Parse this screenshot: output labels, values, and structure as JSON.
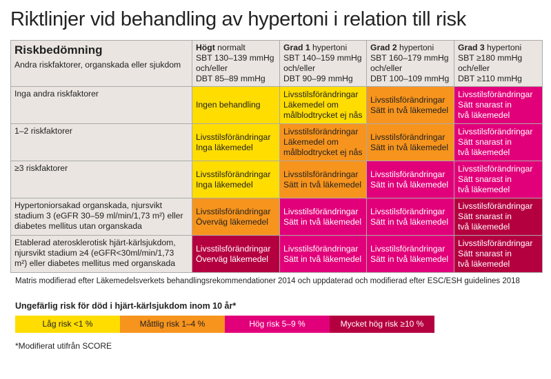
{
  "title": "Riktlinjer vid behandling av hypertoni i relation till risk",
  "header": {
    "title": "Riskbedömning",
    "subtitle": "Andra riskfaktorer, organskada eller sjukdom",
    "columns": [
      {
        "bold": "Högt",
        "rest": " normalt",
        "lines": [
          "SBT 130–139 mmHg",
          "och/eller",
          "DBT 85–89 mmHg"
        ]
      },
      {
        "bold": "Grad 1",
        "rest": " hypertoni",
        "lines": [
          "SBT 140–159 mmHg",
          "och/eller",
          "DBT 90–99 mmHg"
        ]
      },
      {
        "bold": "Grad 2",
        "rest": " hypertoni",
        "lines": [
          "SBT 160–179 mmHg",
          "och/eller",
          "DBT 100–109 mmHg"
        ]
      },
      {
        "bold": "Grad 3",
        "rest": " hypertoni",
        "lines": [
          "SBT ≥180 mmHg",
          "och/eller",
          "DBT ≥110 mmHg"
        ]
      }
    ]
  },
  "colors": {
    "Y": "#ffdd00",
    "O": "#f7941d",
    "M": "#e2007a",
    "D": "#b5003f"
  },
  "rows": [
    {
      "label": "Inga andra riskfaktorer",
      "cells": [
        {
          "c": "Y",
          "t": "Ingen behandling"
        },
        {
          "c": "Y",
          "t": "Livsstilsförändringar\nLäkemedel om\nmålblodtrycket ej nås"
        },
        {
          "c": "O",
          "t": "Livsstilsförändringar\nSätt in två läkemedel"
        },
        {
          "c": "M",
          "t": "Livsstilsförändringar\nSätt snarast in\ntvå läkemedel"
        }
      ]
    },
    {
      "label": "1–2 riskfaktorer",
      "cells": [
        {
          "c": "Y",
          "t": "Livsstilsförändringar\nInga läkemedel"
        },
        {
          "c": "O",
          "t": "Livsstilsförändringar\nLäkemedel om\nmålblodtrycket ej nås"
        },
        {
          "c": "O",
          "t": "Livsstilsförändringar\nSätt in två läkemedel"
        },
        {
          "c": "M",
          "t": "Livsstilsförändringar\nSätt snarast in\ntvå läkemedel"
        }
      ]
    },
    {
      "label": "≥3 riskfaktorer",
      "cells": [
        {
          "c": "Y",
          "t": "Livsstilsförändringar\nInga läkemedel"
        },
        {
          "c": "O",
          "t": "Livsstilsförändringar\nSätt in två läkemedel"
        },
        {
          "c": "M",
          "t": "Livsstilsförändringar\nSätt in två läkemedel"
        },
        {
          "c": "M",
          "t": "Livsstilsförändringar\nSätt snarast in\ntvå läkemedel"
        }
      ]
    },
    {
      "label": "Hypertoniorsakad organskada, njursvikt stadium 3 (eGFR 30–59 ml/min/1,73 m²) eller diabetes mellitus utan organskada",
      "cells": [
        {
          "c": "O",
          "t": "Livsstilsförändringar\nÖverväg läkemedel"
        },
        {
          "c": "M",
          "t": "Livsstilsförändringar\nSätt in två läkemedel"
        },
        {
          "c": "M",
          "t": "Livsstilsförändringar\nSätt in två läkemedel"
        },
        {
          "c": "D",
          "t": "Livsstilsförändringar\nSätt snarast in\ntvå läkemedel"
        }
      ]
    },
    {
      "label": "Etablerad aterosklerotisk hjärt-kärlsjukdom, njursvikt stadium ≥4 (eGFR<30ml/min/1,73 m²) eller diabetes mellitus med organskada",
      "cells": [
        {
          "c": "D",
          "t": "Livsstilsförändringar\nÖverväg läkemedel"
        },
        {
          "c": "M",
          "t": "Livsstilsförändringar\nSätt in två läkemedel"
        },
        {
          "c": "M",
          "t": "Livsstilsförändringar\nSätt in två läkemedel"
        },
        {
          "c": "D",
          "t": "Livsstilsförändringar\nSätt snarast in\ntvå läkemedel"
        }
      ]
    }
  ],
  "note": "Matris modifierad efter Läkemedelsverkets behandlingsrekommendationer 2014 och uppdaterad och modifierad efter ESC/ESH guidelines 2018",
  "legend": {
    "title": "Ungefärlig risk för död i hjärt-kärlsjukdom inom 10 år*",
    "items": [
      {
        "c": "Y",
        "t": "Låg risk <1 %"
      },
      {
        "c": "O",
        "t": "Måttlig risk 1–4 %"
      },
      {
        "c": "M",
        "t": "Hög risk 5–9 %"
      },
      {
        "c": "D",
        "t": "Mycket hög risk ≥10 %"
      }
    ]
  },
  "footnote": "*Modifierat utifrån SCORE"
}
